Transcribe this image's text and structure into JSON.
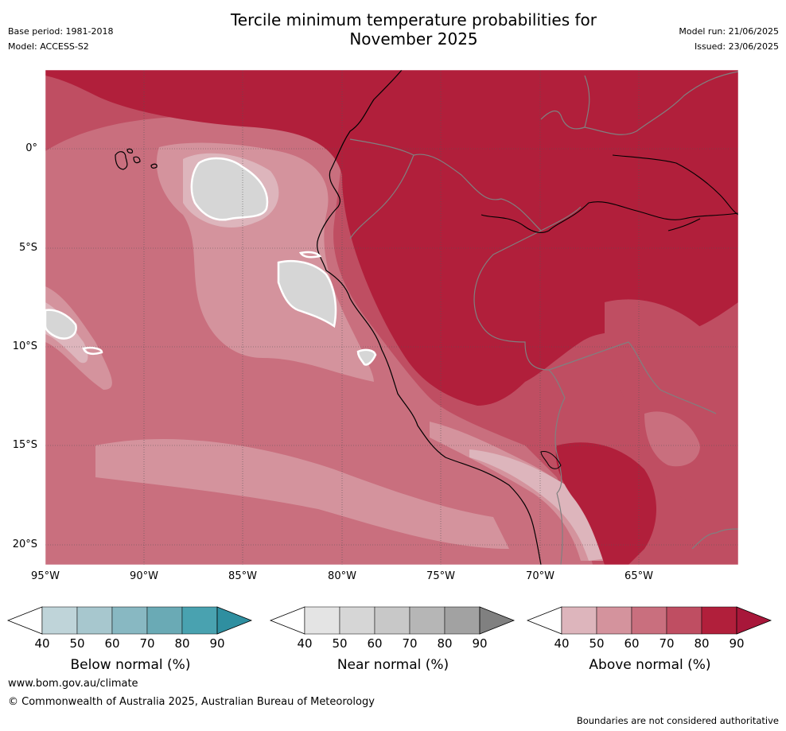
{
  "header": {
    "title_line1": "Tercile minimum temperature probabilities for",
    "title_line2": "November 2025",
    "base_period": "Base period: 1981-2018",
    "model": "Model: ACCESS-S2",
    "model_run": "Model run: 21/06/2025",
    "issued": "Issued: 23/06/2025"
  },
  "map": {
    "x_ticks": [
      "95°W",
      "90°W",
      "85°W",
      "80°W",
      "75°W",
      "70°W",
      "65°W"
    ],
    "y_ticks": [
      "0°",
      "5°S",
      "10°S",
      "15°S",
      "20°S"
    ],
    "colors": {
      "above_40": "#ddb5bc",
      "above_50": "#d4939d",
      "above_60": "#c96f7e",
      "above_70": "#bf4e62",
      "above_80": "#b11f3b",
      "near_50": "#d6d6d6"
    }
  },
  "legends": [
    {
      "label": "Below normal (%)",
      "ticks": [
        "40",
        "50",
        "60",
        "70",
        "80",
        "90"
      ],
      "colors": [
        "#bfd4d9",
        "#a7c7ce",
        "#88b8c2",
        "#6aaab5",
        "#49a2b0",
        "#2f8fa0"
      ]
    },
    {
      "label": "Near normal (%)",
      "ticks": [
        "40",
        "50",
        "60",
        "70",
        "80",
        "90"
      ],
      "colors": [
        "#e4e4e4",
        "#d6d6d6",
        "#c8c8c8",
        "#b6b6b6",
        "#a2a2a2",
        "#808080"
      ]
    },
    {
      "label": "Above normal (%)",
      "ticks": [
        "40",
        "50",
        "60",
        "70",
        "80",
        "90"
      ],
      "colors": [
        "#ddb5bc",
        "#d4939d",
        "#c96f7e",
        "#bf4e62",
        "#b11f3b",
        "#a8173a"
      ]
    }
  ],
  "footer": {
    "url": "www.bom.gov.au/climate",
    "copyright": "© Commonwealth of Australia 2025, Australian Bureau of Meteorology",
    "note": "Boundaries are not considered authoritative"
  }
}
